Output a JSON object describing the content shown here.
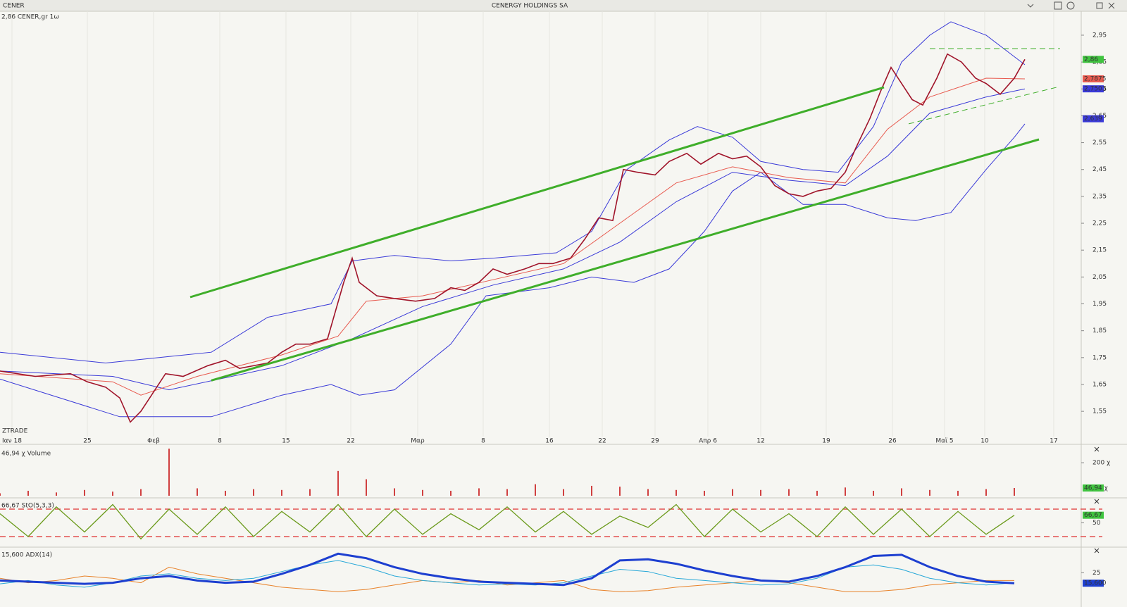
{
  "window": {
    "symbol": "CENER",
    "title": "CENERGY HOLDINGS SA"
  },
  "chart_data": [
    {
      "type": "line",
      "label": "2,86 CENER,gr 1ω",
      "watermark": "ZTRADE",
      "xlim": [
        0,
        76.75
      ],
      "ylim": [
        1.456,
        3.039
      ],
      "xticks": [
        {
          "value": 0.85,
          "label": "Ιαν 18"
        },
        {
          "value": 6.2,
          "label": "25"
        },
        {
          "value": 10.9,
          "label": "Φεβ"
        },
        {
          "value": 15.6,
          "label": "8"
        },
        {
          "value": 20.3,
          "label": "15"
        },
        {
          "value": 24.9,
          "label": "22"
        },
        {
          "value": 29.65,
          "label": "Μαρ"
        },
        {
          "value": 34.3,
          "label": "8"
        },
        {
          "value": 39,
          "label": "16"
        },
        {
          "value": 42.75,
          "label": "22"
        },
        {
          "value": 46.5,
          "label": "29"
        },
        {
          "value": 50.25,
          "label": "Απρ 6"
        },
        {
          "value": 54,
          "label": "12"
        },
        {
          "value": 58.65,
          "label": "19"
        },
        {
          "value": 63.35,
          "label": "26"
        },
        {
          "value": 67.05,
          "label": "Μαϊ 5"
        },
        {
          "value": 69.9,
          "label": "10"
        },
        {
          "value": 74.8,
          "label": "17"
        }
      ],
      "yticks": [
        {
          "value": 1.55,
          "label": "1,55"
        },
        {
          "value": 1.65,
          "label": "1,65"
        },
        {
          "value": 1.75,
          "label": "1,75"
        },
        {
          "value": 1.85,
          "label": "1,85"
        },
        {
          "value": 1.95,
          "label": "1,95"
        },
        {
          "value": 2.05,
          "label": "2,05"
        },
        {
          "value": 2.15,
          "label": "2,15"
        },
        {
          "value": 2.25,
          "label": "2,25"
        },
        {
          "value": 2.35,
          "label": "2,35"
        },
        {
          "value": 2.45,
          "label": "2,45"
        },
        {
          "value": 2.55,
          "label": "2,55"
        },
        {
          "value": 2.65,
          "label": "2,65"
        },
        {
          "value": 2.75,
          "label": "2,75"
        },
        {
          "value": 2.85,
          "label": "2,85"
        },
        {
          "value": 2.95,
          "label": "2,95"
        }
      ],
      "series": [
        {
          "color": "#3a3ad8",
          "width": 1,
          "x": [
            0,
            7.5,
            15,
            19,
            23.5,
            25,
            28,
            32,
            35,
            39.5,
            42,
            44.5,
            47.5,
            49.5,
            52,
            54,
            57,
            59.5,
            62,
            64,
            66,
            67.5,
            70,
            72,
            72.75
          ],
          "values": [
            1.77,
            1.73,
            1.77,
            1.9,
            1.95,
            2.11,
            2.13,
            2.11,
            2.12,
            2.14,
            2.22,
            2.45,
            2.56,
            2.61,
            2.57,
            2.48,
            2.45,
            2.44,
            2.61,
            2.85,
            2.95,
            3.0,
            2.95,
            2.87,
            2.84
          ]
        },
        {
          "color": "#3a3ad8",
          "width": 1,
          "x": [
            0,
            8.5,
            15,
            20,
            23.5,
            25.5,
            28,
            32,
            34.5,
            39,
            42,
            45,
            47.5,
            50,
            52,
            54,
            57,
            60,
            63,
            65,
            67.5,
            70,
            72,
            72.75
          ],
          "values": [
            1.67,
            1.53,
            1.53,
            1.61,
            1.65,
            1.61,
            1.63,
            1.8,
            1.98,
            2.01,
            2.05,
            2.03,
            2.08,
            2.22,
            2.37,
            2.44,
            2.32,
            2.32,
            2.27,
            2.26,
            2.29,
            2.45,
            2.57,
            2.62
          ]
        },
        {
          "color": "#3a3ad8",
          "width": 1,
          "x": [
            0,
            8,
            12,
            20,
            25,
            30,
            35,
            40,
            44,
            48,
            52,
            56,
            60,
            63,
            66,
            70,
            72.75
          ],
          "values": [
            1.7,
            1.68,
            1.63,
            1.72,
            1.82,
            1.94,
            2.02,
            2.08,
            2.18,
            2.33,
            2.44,
            2.41,
            2.39,
            2.5,
            2.66,
            2.72,
            2.7503
          ]
        },
        {
          "color": "#e85a4f",
          "width": 1,
          "x": [
            0,
            8,
            10,
            14,
            20,
            24,
            26,
            30,
            35,
            40,
            44,
            48,
            52,
            56,
            60,
            63,
            66,
            70,
            72.75
          ],
          "values": [
            1.69,
            1.66,
            1.61,
            1.68,
            1.76,
            1.83,
            1.96,
            1.98,
            2.04,
            2.1,
            2.25,
            2.4,
            2.46,
            2.42,
            2.4,
            2.6,
            2.72,
            2.79,
            2.7875
          ]
        },
        {
          "color": "#a0142a",
          "width": 1.6,
          "x": [
            0,
            2.5,
            5,
            6.2,
            7.5,
            8.5,
            9.25,
            10,
            10.5,
            11.75,
            13,
            14.75,
            16,
            17,
            19,
            20,
            21,
            22,
            23.25,
            24.4,
            25,
            25.5,
            26.75,
            28,
            29.5,
            30.85,
            32,
            33,
            34,
            35,
            36,
            37.25,
            38.25,
            39.25,
            40.5,
            41.5,
            42.5,
            43.5,
            44.25,
            45.25,
            46.5,
            47.5,
            48.75,
            49.75,
            51,
            52,
            53,
            54,
            55,
            56,
            57,
            58,
            59,
            60,
            60.75,
            61.75,
            62.5,
            63.25,
            64,
            64.75,
            65.5,
            66.5,
            67.25,
            68.25,
            69.25,
            70,
            71,
            72,
            72.75
          ],
          "values": [
            1.7,
            1.68,
            1.69,
            1.66,
            1.64,
            1.6,
            1.51,
            1.55,
            1.59,
            1.69,
            1.68,
            1.72,
            1.74,
            1.71,
            1.73,
            1.77,
            1.8,
            1.8,
            1.82,
            2.03,
            2.12,
            2.03,
            1.98,
            1.97,
            1.96,
            1.97,
            2.01,
            2.0,
            2.03,
            2.08,
            2.06,
            2.08,
            2.1,
            2.1,
            2.12,
            2.19,
            2.27,
            2.26,
            2.45,
            2.44,
            2.43,
            2.48,
            2.51,
            2.47,
            2.51,
            2.49,
            2.5,
            2.46,
            2.39,
            2.36,
            2.35,
            2.37,
            2.38,
            2.44,
            2.53,
            2.64,
            2.74,
            2.83,
            2.77,
            2.71,
            2.69,
            2.79,
            2.88,
            2.85,
            2.79,
            2.77,
            2.73,
            2.79,
            2.86
          ]
        }
      ],
      "lines": [
        {
          "color": "#3fae2a",
          "width": 3,
          "x": [
            13.5,
            62.75
          ],
          "values": [
            1.975,
            2.756
          ]
        },
        {
          "color": "#3fae2a",
          "width": 3,
          "x": [
            15,
            73.75
          ],
          "values": [
            1.665,
            2.562
          ]
        },
        {
          "color": "#3fae2a",
          "width": 1,
          "dashed": true,
          "x": [
            66,
            75.25
          ],
          "values": [
            2.9,
            2.9
          ]
        },
        {
          "color": "#3fae2a",
          "width": 1,
          "dashed": true,
          "x": [
            64.5,
            75
          ],
          "values": [
            2.62,
            2.756
          ]
        }
      ],
      "tags": [
        {
          "value": 2.86,
          "label": "2,86",
          "color": "#3fc43f"
        },
        {
          "value": 2.7875,
          "label": "2,7875",
          "color": "#e85a4f"
        },
        {
          "value": 2.7503,
          "label": "2,7503",
          "color": "#3a3ad8"
        },
        {
          "value": 2.639,
          "label": "2,639",
          "color": "#3a3ad8"
        }
      ]
    },
    {
      "type": "bar",
      "label": "46,94 χ Volume",
      "color": "#d04040",
      "xlim": [
        0,
        76.75
      ],
      "ylim": [
        0,
        290
      ],
      "yticks": [
        {
          "value": 200,
          "label": "200 χ"
        }
      ],
      "x": [
        0,
        2,
        4,
        6,
        8,
        10,
        12,
        14,
        16,
        18,
        20,
        22,
        24,
        26,
        28,
        30,
        32,
        34,
        36,
        38,
        40,
        42,
        44,
        46,
        48,
        50,
        52,
        54,
        56,
        58,
        60,
        62,
        64,
        66,
        68,
        70,
        72
      ],
      "values": [
        15,
        30,
        20,
        35,
        25,
        40,
        285,
        45,
        30,
        40,
        35,
        40,
        150,
        100,
        45,
        35,
        30,
        45,
        40,
        70,
        40,
        60,
        55,
        40,
        35,
        30,
        40,
        35,
        40,
        30,
        50,
        30,
        45,
        35,
        30,
        40,
        46.94
      ],
      "tags": [
        {
          "value": 46.94,
          "label": "46,94 χ",
          "color": "#3fc43f"
        }
      ]
    },
    {
      "type": "line",
      "label": "66,67 StO(5,3,3)",
      "xlim": [
        0,
        76.75
      ],
      "ylim": [
        0,
        100
      ],
      "yticks": [
        50
      ],
      "levels": [
        80,
        20
      ],
      "level_color": "#e03030",
      "series": [
        {
          "color": "#6a9a1a",
          "width": 1.3,
          "x": [
            0,
            2,
            4,
            6,
            8,
            10,
            12,
            14,
            16,
            18,
            20,
            22,
            24,
            26,
            28,
            30,
            32,
            34,
            36,
            38,
            40,
            42,
            44,
            46,
            48,
            50,
            52,
            54,
            56,
            58,
            60,
            62,
            64,
            66,
            68,
            70,
            72
          ],
          "values": [
            70,
            20,
            85,
            30,
            90,
            15,
            80,
            25,
            85,
            20,
            75,
            30,
            90,
            20,
            80,
            25,
            70,
            35,
            85,
            30,
            75,
            25,
            65,
            40,
            90,
            20,
            80,
            30,
            70,
            20,
            85,
            25,
            80,
            20,
            75,
            25,
            66.67
          ]
        }
      ],
      "tags": [
        {
          "value": 66.67,
          "label": "66,67",
          "color": "#3fc43f"
        }
      ]
    },
    {
      "type": "line",
      "label": "15,600 ADX(14)",
      "xlim": [
        0,
        76.75
      ],
      "ylim": [
        5,
        46
      ],
      "yticks": [
        25
      ],
      "series": [
        {
          "color": "#e8822a",
          "width": 1,
          "x": [
            0,
            2,
            4,
            6,
            8,
            10,
            12,
            14,
            16,
            18,
            20,
            22,
            24,
            26,
            28,
            30,
            32,
            34,
            36,
            38,
            40,
            42,
            44,
            46,
            48,
            50,
            52,
            54,
            56,
            58,
            60,
            62,
            64,
            66,
            68,
            70,
            72
          ],
          "values": [
            20,
            16,
            18,
            22,
            20,
            16,
            30,
            24,
            20,
            16,
            12,
            10,
            8,
            10,
            14,
            18,
            16,
            18,
            14,
            16,
            18,
            10,
            8,
            9,
            12,
            14,
            16,
            18,
            16,
            12,
            8,
            8,
            10,
            14,
            16,
            18,
            18
          ]
        },
        {
          "color": "#28a8d8",
          "width": 1,
          "x": [
            0,
            2,
            4,
            6,
            8,
            10,
            12,
            14,
            16,
            18,
            20,
            22,
            24,
            26,
            28,
            30,
            32,
            34,
            36,
            38,
            40,
            42,
            44,
            46,
            48,
            50,
            52,
            54,
            56,
            58,
            60,
            62,
            64,
            66,
            68,
            70,
            72
          ],
          "values": [
            15,
            18,
            14,
            12,
            16,
            22,
            24,
            20,
            18,
            20,
            26,
            32,
            36,
            30,
            22,
            18,
            16,
            14,
            15,
            14,
            16,
            22,
            28,
            26,
            20,
            18,
            16,
            14,
            15,
            20,
            30,
            32,
            28,
            20,
            16,
            14,
            16
          ]
        },
        {
          "color": "#1d3fd0",
          "width": 3,
          "x": [
            0,
            2,
            4,
            6,
            8,
            10,
            12,
            14,
            16,
            18,
            20,
            22,
            24,
            26,
            28,
            30,
            32,
            34,
            36,
            38,
            40,
            42,
            44,
            46,
            48,
            50,
            52,
            54,
            56,
            58,
            60,
            62,
            64,
            66,
            68,
            70,
            72
          ],
          "values": [
            18,
            17,
            16,
            15,
            16,
            20,
            22,
            18,
            16,
            17,
            24,
            32,
            42,
            38,
            30,
            24,
            20,
            17,
            16,
            15,
            14,
            20,
            36,
            37,
            33,
            27,
            22,
            18,
            17,
            22,
            30,
            40,
            41,
            30,
            22,
            17,
            15.6
          ]
        }
      ],
      "tags": [
        {
          "value": 15.6,
          "label": "15,600",
          "color": "#1d3fd0"
        }
      ]
    }
  ]
}
